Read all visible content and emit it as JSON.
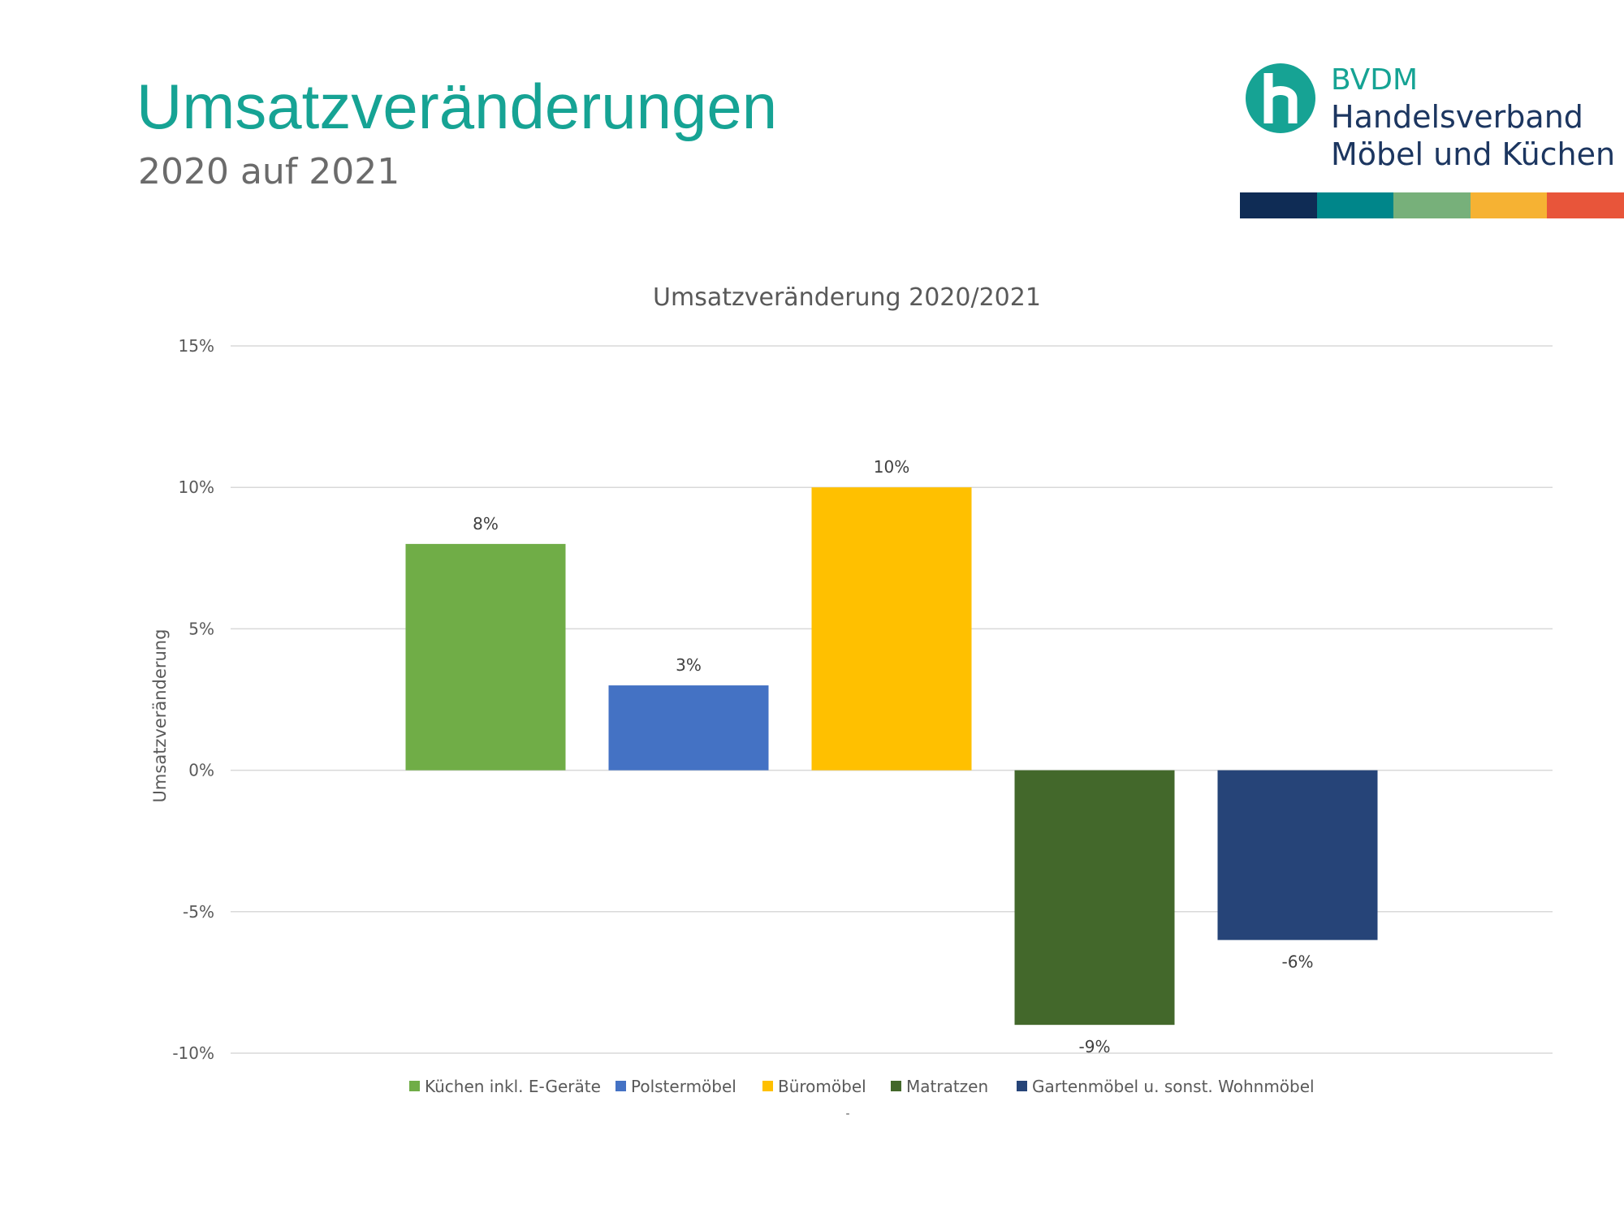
{
  "header": {
    "title": "Umsatzveränderungen",
    "subtitle": "2020 auf 2021"
  },
  "logo": {
    "abbr": "BVDM",
    "line1": "Handelsverband",
    "line2": "Möbel und Küchen",
    "stripe_colors": [
      "#0f2c55",
      "#00868a",
      "#77b07a",
      "#f6b233",
      "#e8553a"
    ]
  },
  "chart_data": {
    "type": "bar",
    "title": "Umsatzveränderung 2020/2021",
    "ylabel": "Umsatzveränderung",
    "xlabel": "-",
    "ylim": [
      -10,
      15
    ],
    "yticks": [
      15,
      10,
      5,
      0,
      -5,
      -10
    ],
    "ytick_labels": [
      "15%",
      "10%",
      "5%",
      "0%",
      "-5%",
      "-10%"
    ],
    "grid": true,
    "legend_position": "bottom",
    "series": [
      {
        "name": "Küchen inkl. E-Geräte",
        "value": 8,
        "label": "8%",
        "color": "#70ad47"
      },
      {
        "name": "Polstermöbel",
        "value": 3,
        "label": "3%",
        "color": "#4472c4"
      },
      {
        "name": "Büromöbel",
        "value": 10,
        "label": "10%",
        "color": "#ffc000"
      },
      {
        "name": "Matratzen",
        "value": -9,
        "label": "-9%",
        "color": "#43682b"
      },
      {
        "name": "Gartenmöbel u. sonst. Wohnmöbel",
        "value": -6,
        "label": "-6%",
        "color": "#264478"
      }
    ]
  }
}
